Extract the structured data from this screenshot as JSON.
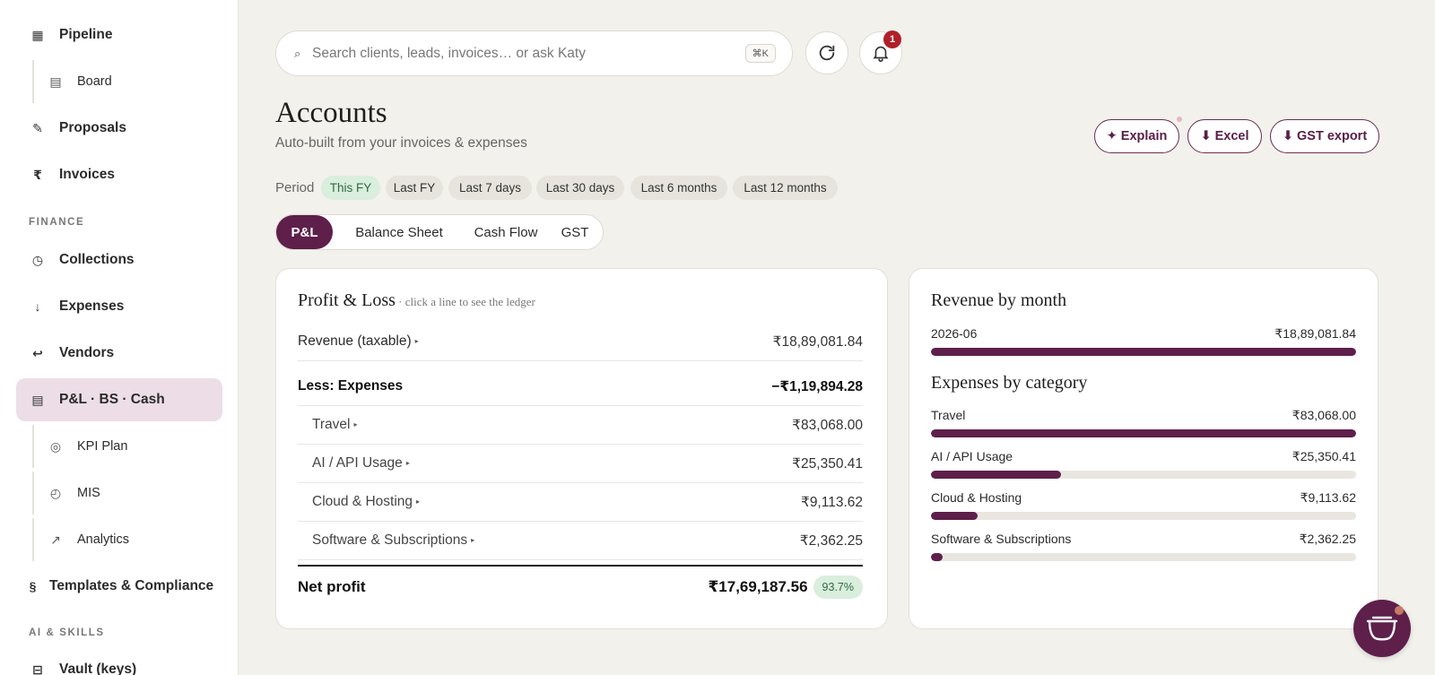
{
  "sidebar": {
    "items": [
      {
        "label": "Pipeline",
        "icon": "grid-icon"
      },
      {
        "label": "Board",
        "icon": "board-icon"
      },
      {
        "label": "Proposals",
        "icon": "pen-icon"
      },
      {
        "label": "Invoices",
        "icon": "rupee-icon"
      },
      {
        "label": "Collections",
        "icon": "clock-icon"
      },
      {
        "label": "Expenses",
        "icon": "arrow-down-icon"
      },
      {
        "label": "Vendors",
        "icon": "return-arrow-icon"
      },
      {
        "label": "P&L · BS · Cash",
        "icon": "ledger-icon",
        "active": true
      },
      {
        "label": "KPI Plan",
        "icon": "target-icon"
      },
      {
        "label": "MIS",
        "icon": "clock-icon"
      },
      {
        "label": "Analytics",
        "icon": "arrow-up-right-icon"
      },
      {
        "label": "Templates & Compliance",
        "icon": "section-icon"
      },
      {
        "label": "Vault (keys)",
        "icon": "vault-icon"
      }
    ],
    "sections": {
      "finance": "FINANCE",
      "ai": "AI & SKILLS"
    }
  },
  "search": {
    "placeholder": "Search clients, leads, invoices… or ask Katy",
    "shortcut": "⌘K"
  },
  "notifications": {
    "count": "1"
  },
  "header": {
    "title": "Accounts",
    "subtitle": "Auto-built from your invoices & expenses"
  },
  "actions": {
    "explain": "✦ Explain",
    "excel": "⬇ Excel",
    "gst": "⬇ GST export"
  },
  "period": {
    "label": "Period",
    "options": [
      "This FY",
      "Last FY",
      "Last 7 days",
      "Last 30 days",
      "Last 6 months",
      "Last 12 months"
    ],
    "selected": "This FY"
  },
  "tabs": {
    "items": [
      "P&L",
      "Balance Sheet",
      "Cash Flow",
      "GST"
    ],
    "selected": "P&L"
  },
  "pnl": {
    "title": "Profit & Loss",
    "hint": " · click a line to see the ledger",
    "revenue": {
      "label": "Revenue (taxable)",
      "value": "₹18,89,081.84"
    },
    "less_expenses": {
      "label": "Less: Expenses",
      "value": "−₹1,19,894.28"
    },
    "expenses": [
      {
        "label": "Travel",
        "value": "₹83,068.00"
      },
      {
        "label": "AI / API Usage",
        "value": "₹25,350.41"
      },
      {
        "label": "Cloud & Hosting",
        "value": "₹9,113.62"
      },
      {
        "label": "Software & Subscriptions",
        "value": "₹2,362.25"
      }
    ],
    "net": {
      "label": "Net profit",
      "value": "₹17,69,187.56",
      "margin": "93.7%"
    }
  },
  "revenue_by_month": {
    "title": "Revenue by month",
    "rows": [
      {
        "label": "2026-06",
        "value": "₹18,89,081.84",
        "fraction": 1.0
      }
    ]
  },
  "expenses_by_category": {
    "title": "Expenses by category",
    "rows": [
      {
        "label": "Travel",
        "value": "₹83,068.00",
        "fraction": 1.0
      },
      {
        "label": "AI / API Usage",
        "value": "₹25,350.41",
        "fraction": 0.305
      },
      {
        "label": "Cloud & Hosting",
        "value": "₹9,113.62",
        "fraction": 0.11
      },
      {
        "label": "Software & Subscriptions",
        "value": "₹2,362.25",
        "fraction": 0.028
      }
    ]
  },
  "colors": {
    "brand": "#5e1f4b",
    "positive_bg": "#d9eedd",
    "positive_text": "#2f6a43",
    "badge": "#b0202a"
  }
}
